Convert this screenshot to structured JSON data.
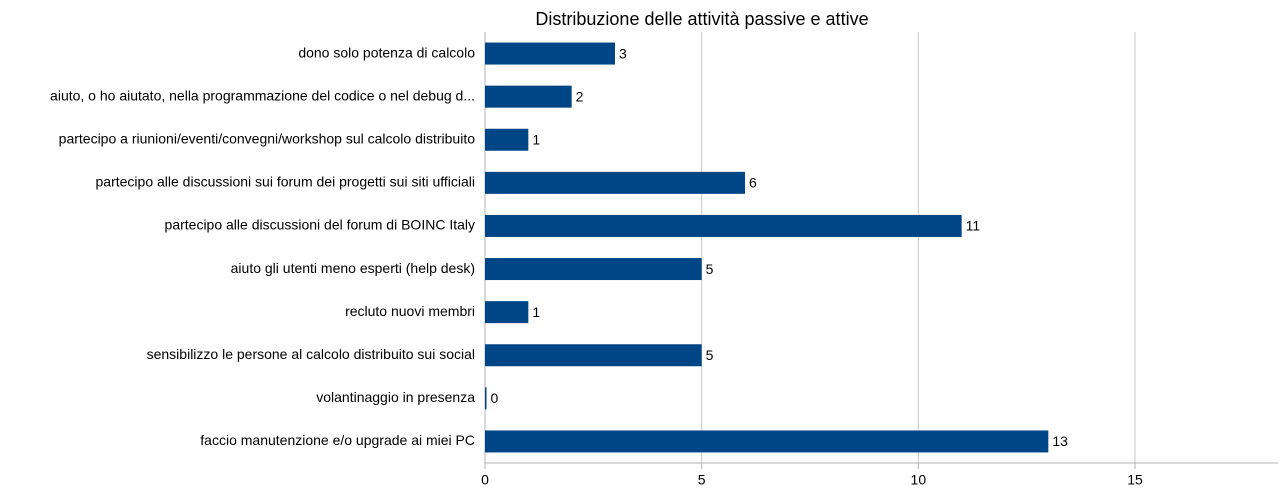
{
  "chart_data": {
    "type": "bar",
    "orientation": "horizontal",
    "title": "Distribuzione delle attività passive e attive",
    "categories": [
      "dono solo potenza di calcolo",
      "aiuto, o ho aiutato, nella programmazione del codice o nel debug d...",
      "partecipo a riunioni/eventi/convegni/workshop sul calcolo distribuito",
      "partecipo alle discussioni sui forum dei progetti sui siti ufficiali",
      "partecipo alle discussioni del forum di BOINC Italy",
      "aiuto gli utenti meno esperti (help desk)",
      "recluto nuovi membri",
      "sensibilizzo le persone al calcolo distribuito sui social",
      "volantinaggio in presenza",
      "faccio manutenzione e/o upgrade ai miei PC"
    ],
    "values": [
      3,
      2,
      1,
      6,
      11,
      5,
      1,
      5,
      0,
      13
    ],
    "color": "#004586",
    "xlim": [
      0,
      18.3
    ],
    "xticks": [
      0,
      5,
      10,
      15
    ],
    "grid": true
  }
}
